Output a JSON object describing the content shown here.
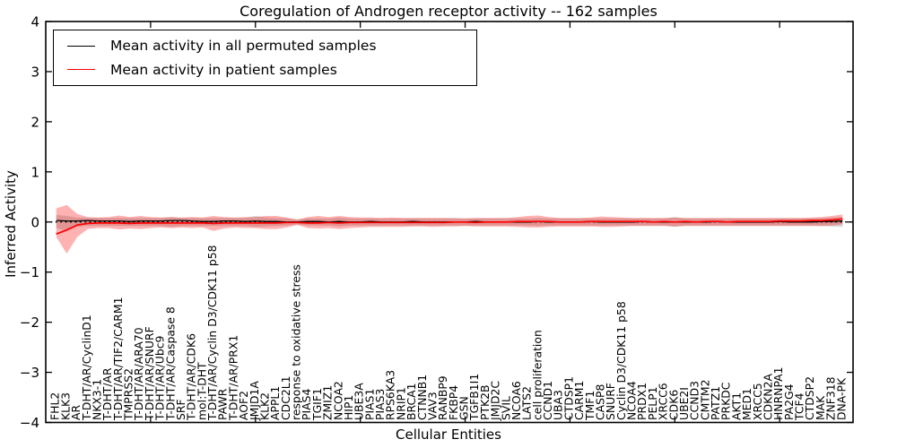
{
  "chart_data": {
    "type": "line",
    "title": "Coregulation of Androgen receptor activity -- 162 samples",
    "xlabel": "Cellular Entities",
    "ylabel": "Inferred Activity",
    "ylim": [
      -4,
      4
    ],
    "xlim": [
      0,
      77
    ],
    "yticks": [
      4,
      3,
      2,
      1,
      0,
      -1,
      -2,
      -3,
      -4
    ],
    "xtick_positions": [
      10,
      20,
      30,
      40,
      50,
      60,
      70
    ],
    "grid": false,
    "legend_position": "upper left",
    "reference_line_y": 0,
    "categories": [
      "FHL2",
      "KLK3",
      "AR",
      "T-DHT/AR/CyclinD1",
      "NKX3-1",
      "T-DHT/AR",
      "T-DHT/AR/TIF2/CARM1",
      "TMPRSS2",
      "T-DHT/AR/ARA70",
      "T-DHT/AR/SNURF",
      "T-DHT/AR/Ubc9",
      "T-DHT/AR/Caspase 8",
      "SRF",
      "T-DHT/AR/CDK6",
      "mol:T-DHT",
      "T-DHT/AR/Cyclin D3/CDK11 p58",
      "PAWR",
      "T-DHT/AR/PRX1",
      "AOF2",
      "JMJD1A",
      "KLK2",
      "APPL1",
      "CDC2L1",
      "response to oxidative stress",
      "PIAS4",
      "TGIF1",
      "ZMIZ1",
      "NCOA2",
      "HIP1",
      "UBE3A",
      "PIAS1",
      "PIAS3",
      "RPS6KA3",
      "NRIP1",
      "BRCA1",
      "CTNNB1",
      "VAV3",
      "RANBP9",
      "FKBP4",
      "GSN",
      "TGFB1I1",
      "PTK2B",
      "JMJD2C",
      "SVIL",
      "NCOA6",
      "LATS2",
      "cell proliferation",
      "CCND1",
      "UBA3",
      "CTDSP1",
      "CARM1",
      "TMF1",
      "CASP8",
      "SNURF",
      "Cyclin D3/CDK11 p58",
      "NCOA4",
      "PRDX1",
      "PELP1",
      "XRCC6",
      "CDK6",
      "UBE2I",
      "CCND3",
      "CMTM2",
      "PATZ1",
      "PRKDC",
      "AKT1",
      "MED1",
      "XRCC5",
      "CDKN2A",
      "HNRNPA1",
      "PA2G4",
      "TCF4",
      "CTDSP2",
      "MAK",
      "ZNF318",
      "DNA-PK"
    ],
    "series": [
      {
        "name": "Mean activity in all permuted samples",
        "color": "#000000",
        "band_color": "rgba(128,128,128,0.32)",
        "values": [
          0.03,
          0.02,
          0.02,
          0.03,
          0.02,
          0.02,
          0.02,
          0.01,
          0.02,
          0.02,
          0.02,
          0.03,
          0.03,
          0.02,
          0.01,
          0.01,
          0.02,
          0.02,
          0.01,
          0.02,
          0.01,
          0.01,
          0.0,
          0.0,
          0.01,
          0.01,
          0.0,
          0.01,
          0.0,
          0.0,
          0.01,
          0.0,
          0.0,
          0.0,
          0.01,
          0.0,
          0.0,
          0.0,
          0.0,
          0.0,
          0.01,
          0.0,
          0.0,
          0.0,
          0.0,
          0.0,
          0.01,
          0.0,
          0.0,
          0.0,
          0.0,
          0.01,
          0.0,
          0.0,
          0.0,
          0.0,
          0.01,
          0.0,
          0.0,
          0.0,
          0.0,
          0.0,
          0.0,
          0.01,
          0.0,
          0.0,
          0.0,
          0.0,
          0.0,
          0.01,
          0.0,
          0.0,
          0.0,
          0.01,
          0.01,
          0.02
        ],
        "upper": [
          0.14,
          0.12,
          0.09,
          0.08,
          0.08,
          0.08,
          0.08,
          0.08,
          0.08,
          0.08,
          0.08,
          0.1,
          0.08,
          0.08,
          0.08,
          0.08,
          0.08,
          0.08,
          0.08,
          0.12,
          0.09,
          0.08,
          0.07,
          0.05,
          0.07,
          0.07,
          0.07,
          0.09,
          0.07,
          0.07,
          0.07,
          0.07,
          0.07,
          0.07,
          0.07,
          0.07,
          0.07,
          0.07,
          0.07,
          0.07,
          0.07,
          0.07,
          0.07,
          0.07,
          0.07,
          0.07,
          0.08,
          0.07,
          0.07,
          0.07,
          0.07,
          0.07,
          0.07,
          0.07,
          0.07,
          0.07,
          0.07,
          0.07,
          0.07,
          0.1,
          0.07,
          0.07,
          0.07,
          0.07,
          0.07,
          0.07,
          0.07,
          0.07,
          0.07,
          0.07,
          0.07,
          0.07,
          0.07,
          0.08,
          0.09,
          0.1
        ],
        "lower": [
          -0.12,
          -0.18,
          -0.1,
          -0.08,
          -0.08,
          -0.08,
          -0.08,
          -0.08,
          -0.08,
          -0.08,
          -0.08,
          -0.1,
          -0.08,
          -0.08,
          -0.08,
          -0.08,
          -0.08,
          -0.08,
          -0.08,
          -0.1,
          -0.09,
          -0.08,
          -0.07,
          -0.05,
          -0.07,
          -0.07,
          -0.07,
          -0.09,
          -0.07,
          -0.07,
          -0.07,
          -0.07,
          -0.07,
          -0.07,
          -0.07,
          -0.07,
          -0.07,
          -0.07,
          -0.07,
          -0.07,
          -0.07,
          -0.07,
          -0.07,
          -0.07,
          -0.07,
          -0.07,
          -0.08,
          -0.07,
          -0.07,
          -0.07,
          -0.07,
          -0.07,
          -0.07,
          -0.07,
          -0.07,
          -0.07,
          -0.07,
          -0.07,
          -0.07,
          -0.1,
          -0.07,
          -0.07,
          -0.07,
          -0.07,
          -0.07,
          -0.07,
          -0.07,
          -0.07,
          -0.07,
          -0.07,
          -0.07,
          -0.07,
          -0.07,
          -0.08,
          -0.09,
          -0.1
        ]
      },
      {
        "name": "Mean activity in patient samples",
        "color": "#ff0000",
        "band_color": "rgba(255,0,0,0.30)",
        "values": [
          -0.24,
          -0.16,
          -0.06,
          -0.03,
          -0.02,
          -0.02,
          -0.02,
          -0.03,
          -0.02,
          -0.02,
          -0.02,
          -0.02,
          -0.02,
          -0.02,
          -0.02,
          -0.03,
          -0.02,
          -0.02,
          -0.02,
          -0.02,
          -0.02,
          -0.02,
          -0.01,
          -0.01,
          -0.02,
          -0.02,
          -0.01,
          -0.02,
          -0.01,
          -0.01,
          -0.01,
          -0.01,
          -0.01,
          -0.01,
          -0.01,
          -0.01,
          -0.01,
          -0.01,
          0.0,
          0.0,
          -0.01,
          0.0,
          0.0,
          0.0,
          0.01,
          0.01,
          0.01,
          0.01,
          0.0,
          0.0,
          0.0,
          0.01,
          0.01,
          0.01,
          0.01,
          0.01,
          0.01,
          0.0,
          0.01,
          0.0,
          0.01,
          0.0,
          0.01,
          0.01,
          0.0,
          0.01,
          0.01,
          0.01,
          0.01,
          0.02,
          0.02,
          0.02,
          0.03,
          0.03,
          0.04,
          0.06
        ],
        "upper": [
          0.27,
          0.34,
          0.16,
          0.1,
          0.09,
          0.1,
          0.13,
          0.1,
          0.12,
          0.1,
          0.09,
          0.1,
          0.09,
          0.1,
          0.09,
          0.12,
          0.1,
          0.09,
          0.1,
          0.1,
          0.12,
          0.12,
          0.09,
          0.05,
          0.1,
          0.12,
          0.1,
          0.12,
          0.1,
          0.09,
          0.09,
          0.08,
          0.09,
          0.08,
          0.08,
          0.08,
          0.08,
          0.08,
          0.08,
          0.07,
          0.08,
          0.08,
          0.08,
          0.08,
          0.1,
          0.12,
          0.13,
          0.1,
          0.08,
          0.08,
          0.08,
          0.09,
          0.11,
          0.1,
          0.09,
          0.08,
          0.08,
          0.08,
          0.08,
          0.09,
          0.08,
          0.08,
          0.08,
          0.08,
          0.08,
          0.08,
          0.08,
          0.08,
          0.08,
          0.08,
          0.08,
          0.08,
          0.09,
          0.1,
          0.12,
          0.15
        ],
        "lower": [
          -0.3,
          -0.63,
          -0.3,
          -0.14,
          -0.12,
          -0.12,
          -0.15,
          -0.13,
          -0.14,
          -0.12,
          -0.11,
          -0.12,
          -0.11,
          -0.12,
          -0.11,
          -0.18,
          -0.13,
          -0.11,
          -0.12,
          -0.12,
          -0.14,
          -0.14,
          -0.11,
          -0.06,
          -0.12,
          -0.13,
          -0.12,
          -0.14,
          -0.12,
          -0.11,
          -0.1,
          -0.1,
          -0.1,
          -0.1,
          -0.09,
          -0.09,
          -0.1,
          -0.09,
          -0.09,
          -0.08,
          -0.09,
          -0.09,
          -0.09,
          -0.09,
          -0.1,
          -0.11,
          -0.11,
          -0.1,
          -0.09,
          -0.09,
          -0.09,
          -0.09,
          -0.1,
          -0.1,
          -0.09,
          -0.08,
          -0.08,
          -0.08,
          -0.08,
          -0.09,
          -0.08,
          -0.08,
          -0.08,
          -0.08,
          -0.08,
          -0.08,
          -0.08,
          -0.08,
          -0.08,
          -0.08,
          -0.08,
          -0.08,
          -0.08,
          -0.08,
          -0.07,
          -0.05
        ]
      }
    ]
  }
}
